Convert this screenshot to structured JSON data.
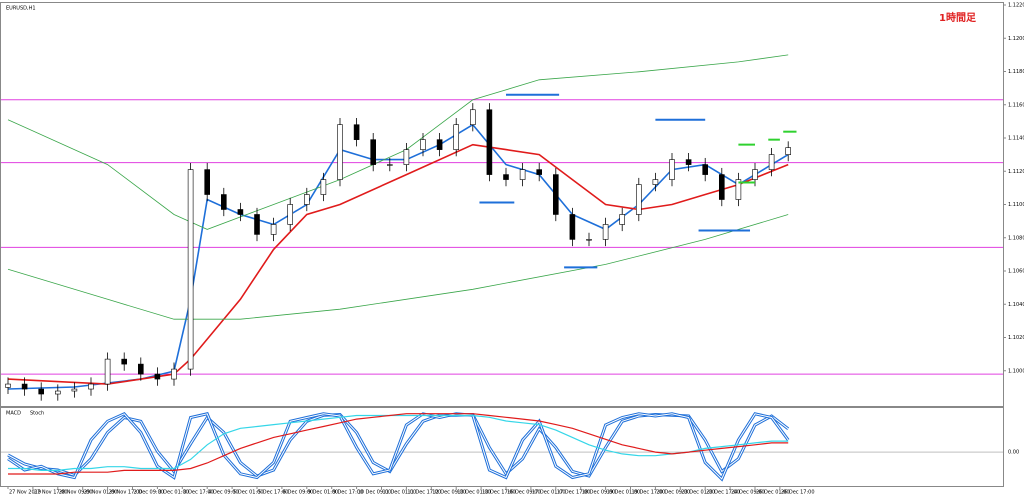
{
  "chart_data": {
    "type": "candlestick",
    "title": "EURUSD,H1",
    "annotation": "1時間足",
    "ylim": [
      1.09788,
      1.122
    ],
    "yticks": [
      {
        "value": 1.1,
        "label": "1.10000"
      },
      {
        "value": 1.102,
        "label": "1.10200"
      },
      {
        "value": 1.104,
        "label": "1.10400"
      },
      {
        "value": 1.106,
        "label": "1.10600"
      },
      {
        "value": 1.108,
        "label": "1.10800"
      },
      {
        "value": 1.11,
        "label": "1.11000"
      },
      {
        "value": 1.112,
        "label": "1.11200"
      },
      {
        "value": 1.114,
        "label": "1.11400"
      },
      {
        "value": 1.116,
        "label": "1.11600"
      },
      {
        "value": 1.118,
        "label": "1.11800"
      },
      {
        "value": 1.12,
        "label": "1.12000"
      },
      {
        "value": 1.122,
        "label": "1.12200"
      }
    ],
    "xticks": [
      {
        "value": 0,
        "label": "27 Nov 2019"
      },
      {
        "value": 1.5,
        "label": "27 Nov 17:00"
      },
      {
        "value": 3,
        "label": "28 Nov 09:00"
      },
      {
        "value": 4.5,
        "label": "29 Nov 01:00"
      },
      {
        "value": 6,
        "label": "29 Nov 17:00"
      },
      {
        "value": 7.5,
        "label": "2 Dec 09:00"
      },
      {
        "value": 9,
        "label": "3 Dec 01:00"
      },
      {
        "value": 10.5,
        "label": "3 Dec 17:00"
      },
      {
        "value": 12,
        "label": "4 Dec 09:00"
      },
      {
        "value": 13.5,
        "label": "5 Dec 01:00"
      },
      {
        "value": 15,
        "label": "5 Dec 17:00"
      },
      {
        "value": 16.5,
        "label": "6 Dec 09:00"
      },
      {
        "value": 18,
        "label": "9 Dec 01:00"
      },
      {
        "value": 19.5,
        "label": "9 Dec 17:00"
      },
      {
        "value": 21,
        "label": "10 Dec 09:00"
      },
      {
        "value": 22.5,
        "label": "11 Dec 01:00"
      },
      {
        "value": 24,
        "label": "11 Dec 17:00"
      },
      {
        "value": 25.5,
        "label": "12 Dec 09:00"
      },
      {
        "value": 27,
        "label": "13 Dec 01:00"
      },
      {
        "value": 28.5,
        "label": "13 Dec 17:00"
      },
      {
        "value": 30,
        "label": "16 Dec 09:00"
      },
      {
        "value": 31.5,
        "label": "17 Dec 01:00"
      },
      {
        "value": 33,
        "label": "17 Dec 17:00"
      },
      {
        "value": 34.5,
        "label": "18 Dec 09:00"
      },
      {
        "value": 36,
        "label": "19 Dec 01:00"
      },
      {
        "value": 37.5,
        "label": "19 Dec 17:00"
      },
      {
        "value": 39,
        "label": "20 Dec 09:00"
      },
      {
        "value": 40.5,
        "label": "23 Dec 01:00"
      },
      {
        "value": 42,
        "label": "23 Dec 17:00"
      },
      {
        "value": 43.5,
        "label": "24 Dec 09:00"
      },
      {
        "value": 45,
        "label": "26 Dec 01:00"
      },
      {
        "value": 46.5,
        "label": "26 Dec 17:00"
      }
    ],
    "open": [
      1.099,
      1.0992,
      1.0989,
      1.0986,
      1.09878,
      1.0989,
      1.0992,
      1.1007,
      1.1004,
      1.0998,
      1.0995,
      1.1001,
      1.1121,
      1.1106,
      1.1097,
      1.1094,
      1.1082,
      1.1088,
      1.11,
      1.1106,
      1.1115,
      1.1148,
      1.1139,
      1.1124,
      1.1124,
      1.1133,
      1.1139,
      1.1133,
      1.1148,
      1.1157,
      1.1118,
      1.1115,
      1.1121,
      1.1118,
      1.1094,
      1.1079,
      1.1079,
      1.1088,
      1.1094,
      1.1112,
      1.1115,
      1.1127,
      1.1124,
      1.1118,
      1.1103,
      1.1115,
      1.1121,
      1.113
    ],
    "high": [
      1.0996,
      1.0996,
      1.0993,
      1.09918,
      1.0993,
      1.0996,
      1.1011,
      1.1011,
      1.1008,
      1.1002,
      1.1005,
      1.1125,
      1.1125,
      1.111,
      1.1101,
      1.1098,
      1.1092,
      1.1104,
      1.111,
      1.1119,
      1.1152,
      1.1152,
      1.1143,
      1.1128,
      1.1137,
      1.1143,
      1.1143,
      1.1152,
      1.1161,
      1.1161,
      1.1122,
      1.1125,
      1.1125,
      1.1122,
      1.1098,
      1.1083,
      1.1092,
      1.1098,
      1.1116,
      1.1119,
      1.1131,
      1.1131,
      1.1128,
      1.1122,
      1.1119,
      1.1125,
      1.1134,
      1.1138
    ],
    "low": [
      1.0986,
      1.0985,
      1.0982,
      1.0982,
      1.09838,
      1.0985,
      1.0988,
      1.1,
      1.0994,
      1.0991,
      1.0991,
      1.0997,
      1.1102,
      1.1093,
      1.109,
      1.1078,
      1.1078,
      1.1084,
      1.1096,
      1.1102,
      1.1111,
      1.1135,
      1.112,
      1.112,
      1.112,
      1.1129,
      1.1129,
      1.1129,
      1.1144,
      1.1114,
      1.1111,
      1.1111,
      1.1114,
      1.109,
      1.1075,
      1.1075,
      1.1075,
      1.1084,
      1.109,
      1.1108,
      1.1111,
      1.112,
      1.1114,
      1.1099,
      1.1099,
      1.1111,
      1.1117,
      1.1126
    ],
    "close": [
      1.0992,
      1.0989,
      1.0986,
      1.09878,
      1.0989,
      1.0992,
      1.1007,
      1.1004,
      1.0998,
      1.0995,
      1.1001,
      1.1121,
      1.1106,
      1.1097,
      1.1094,
      1.1082,
      1.1088,
      1.11,
      1.1106,
      1.1115,
      1.1148,
      1.1139,
      1.1124,
      1.1124,
      1.1133,
      1.1139,
      1.1133,
      1.1148,
      1.1157,
      1.1118,
      1.1115,
      1.1121,
      1.1118,
      1.1094,
      1.1079,
      1.1079,
      1.1088,
      1.1094,
      1.1112,
      1.1115,
      1.1127,
      1.1124,
      1.1118,
      1.1103,
      1.1115,
      1.1121,
      1.113,
      1.11342
    ],
    "ma": [
      {
        "color": "#1e6fd9",
        "x": [
          0,
          4,
          8,
          10,
          11,
          12,
          14,
          16,
          18,
          20,
          22,
          24,
          26,
          28,
          30,
          32,
          34,
          36,
          38,
          40,
          42,
          44,
          46,
          47
        ],
        "values": [
          1.0989,
          1.09902,
          1.0995,
          1.09998,
          1.1043,
          1.1103,
          1.1094,
          1.1088,
          1.11,
          1.1133,
          1.1127,
          1.1127,
          1.1136,
          1.1148,
          1.1124,
          1.1118,
          1.1094,
          1.1085,
          1.11,
          1.1121,
          1.1124,
          1.1112,
          1.1124,
          1.113
        ]
      },
      {
        "color": "#e01b1b",
        "x": [
          0,
          6,
          10,
          11,
          14,
          16,
          18,
          20,
          24,
          28,
          30,
          32,
          34,
          36,
          38,
          40,
          42,
          44,
          47
        ],
        "values": [
          1.0995,
          1.0992,
          1.0998,
          1.1007,
          1.1043,
          1.1073,
          1.1094,
          1.11,
          1.1118,
          1.1136,
          1.1133,
          1.113,
          1.1115,
          1.11,
          1.1097,
          1.11,
          1.1106,
          1.1112,
          1.1124
        ]
      },
      {
        "color": "#3aa64a",
        "x": [
          0,
          6,
          10,
          12,
          16,
          20,
          24,
          28,
          32,
          38,
          44,
          47
        ],
        "values": [
          1.1151,
          1.1124,
          1.1094,
          1.1085,
          1.11,
          1.1115,
          1.1133,
          1.1163,
          1.1175,
          1.11798,
          1.11858,
          1.119
        ]
      },
      {
        "color": "#3aa64a",
        "x": [
          0,
          6,
          10,
          14,
          20,
          28,
          36,
          42,
          47
        ],
        "values": [
          1.1061,
          1.1043,
          1.1031,
          1.1031,
          1.1037,
          1.1049,
          1.1064,
          1.1079,
          1.1094
        ]
      }
    ],
    "levels": [
      1.1163,
      1.11252,
      1.10742,
      1.0998
    ],
    "level_color": "#e040e0",
    "segments": [
      {
        "color": "#1e6fd9",
        "x0": 30,
        "x1": 33.2,
        "value": 1.1166
      },
      {
        "color": "#1e6fd9",
        "x0": 28.4,
        "x1": 30.5,
        "value": 1.11012
      },
      {
        "color": "#1e6fd9",
        "x0": 39,
        "x1": 42,
        "value": 1.1151
      },
      {
        "color": "#1e6fd9",
        "x0": 33.5,
        "x1": 35.5,
        "value": 1.10622
      },
      {
        "color": "#1e6fd9",
        "x0": 41.6,
        "x1": 44.7,
        "value": 1.10844
      },
      {
        "color": "#2fd12f",
        "x0": 44,
        "x1": 45,
        "value": 1.1136
      },
      {
        "color": "#2fd12f",
        "x0": 45.8,
        "x1": 46.5,
        "value": 1.1139
      },
      {
        "color": "#2fd12f",
        "x0": 46.7,
        "x1": 47.5,
        "value": 1.11438
      },
      {
        "color": "#2fd12f",
        "x0": 44,
        "x1": 45,
        "value": 1.11132
      }
    ],
    "indicator": {
      "title": "MACD",
      "title2": "Stoch",
      "ylim": [
        -0.0018,
        0.0023
      ],
      "yticks": [
        {
          "value": 0,
          "label": "0.00"
        }
      ],
      "macd": {
        "color": "#35d6e8",
        "values": [
          -0.0009,
          -0.0009,
          -0.001,
          -0.001,
          -0.0009,
          -0.0009,
          -0.0008,
          -0.0008,
          -0.0009,
          -0.0009,
          -0.0009,
          -0.0004,
          0.0004,
          0.001,
          0.0013,
          0.0014,
          0.0015,
          0.0016,
          0.0017,
          0.0018,
          0.0019,
          0.002,
          0.002,
          0.002,
          0.002,
          0.002,
          0.002,
          0.002,
          0.002,
          0.0019,
          0.0017,
          0.0016,
          0.0015,
          0.0012,
          0.0008,
          0.0004,
          0.0001,
          -0.0001,
          -0.0002,
          -0.0002,
          -0.0001,
          0,
          0.0002,
          0.0003,
          0.0004,
          0.0005,
          0.0006,
          0.0006
        ]
      },
      "signal": {
        "color": "#e01b1b",
        "values": [
          -0.0012,
          -0.0012,
          -0.0012,
          -0.0012,
          -0.0011,
          -0.0011,
          -0.0011,
          -0.001,
          -0.001,
          -0.001,
          -0.001,
          -0.0009,
          -0.0006,
          -0.0002,
          0.0002,
          0.0005,
          0.0008,
          0.001,
          0.0012,
          0.0014,
          0.0016,
          0.0018,
          0.0019,
          0.002,
          0.0021,
          0.0021,
          0.0021,
          0.0021,
          0.0021,
          0.002,
          0.0019,
          0.0018,
          0.0017,
          0.0015,
          0.0013,
          0.001,
          0.0007,
          0.0004,
          0.0002,
          0,
          -0.0001,
          0,
          0.0001,
          0.0002,
          0.0003,
          0.0004,
          0.0005,
          0.0005
        ]
      },
      "stoch_lim": [
        0,
        100
      ],
      "stoch_color": "#1e6fd9",
      "stoch_main": [
        35,
        20,
        25,
        15,
        10,
        60,
        85,
        95,
        70,
        25,
        10,
        90,
        95,
        40,
        15,
        10,
        30,
        85,
        90,
        95,
        92,
        50,
        15,
        20,
        80,
        95,
        90,
        95,
        93,
        20,
        10,
        60,
        85,
        25,
        10,
        15,
        80,
        90,
        95,
        92,
        95,
        90,
        30,
        8,
        60,
        95,
        90,
        60
      ],
      "stoch_signal": [
        40,
        28,
        22,
        20,
        13,
        35,
        70,
        90,
        85,
        45,
        18,
        55,
        90,
        70,
        30,
        12,
        20,
        60,
        85,
        93,
        94,
        70,
        30,
        18,
        55,
        85,
        93,
        93,
        94,
        50,
        15,
        35,
        75,
        50,
        18,
        12,
        50,
        85,
        92,
        94,
        93,
        92,
        60,
        18,
        35,
        80,
        92,
        75
      ]
    }
  }
}
